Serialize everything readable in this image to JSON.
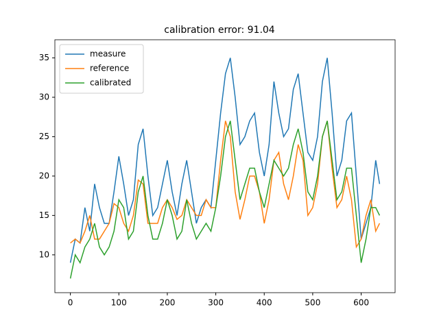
{
  "chart_data": {
    "type": "line",
    "title": "calibration error: 91.04",
    "x": [
      0,
      10,
      20,
      30,
      40,
      50,
      60,
      70,
      80,
      90,
      100,
      110,
      120,
      130,
      140,
      150,
      160,
      170,
      180,
      190,
      200,
      210,
      220,
      230,
      240,
      250,
      260,
      270,
      280,
      290,
      300,
      310,
      320,
      330,
      340,
      350,
      360,
      370,
      380,
      390,
      400,
      410,
      420,
      430,
      440,
      450,
      460,
      470,
      480,
      490,
      500,
      510,
      520,
      530,
      540,
      550,
      560,
      570,
      580,
      590,
      600,
      610,
      620,
      630,
      638
    ],
    "series": [
      {
        "name": "measure",
        "color": "#1f77b4",
        "values": [
          9,
          12,
          11.5,
          16,
          13,
          19,
          16,
          14,
          14,
          18,
          22.5,
          19,
          15,
          17,
          24,
          26,
          20,
          15,
          16,
          19,
          22,
          18,
          15,
          19,
          22,
          18,
          14,
          16,
          17,
          16,
          22,
          28,
          33,
          35,
          30,
          24,
          25,
          27,
          28,
          23,
          20,
          24,
          32,
          28,
          25,
          26,
          31,
          33,
          28,
          23,
          22,
          25,
          32,
          35,
          28,
          20,
          22,
          27,
          28,
          20,
          12,
          14,
          16,
          22,
          19
        ]
      },
      {
        "name": "reference",
        "color": "#ff7f0e",
        "values": [
          11.5,
          12,
          11.5,
          13,
          15,
          12,
          12,
          13,
          14,
          16.5,
          16,
          14,
          13,
          15,
          19.5,
          19,
          14,
          14,
          14,
          16,
          17,
          16,
          14.5,
          15,
          17,
          16,
          15,
          15,
          17,
          16,
          16,
          22,
          27,
          25,
          18,
          14.5,
          17,
          20,
          20,
          18,
          14,
          17,
          22,
          23,
          19,
          17,
          20,
          24,
          22,
          15,
          16,
          19,
          25,
          27,
          21,
          16,
          17,
          20,
          17,
          11,
          12,
          15,
          17,
          13,
          14
        ]
      },
      {
        "name": "calibrated",
        "color": "#2ca02c",
        "values": [
          7,
          10,
          9,
          11,
          12,
          14,
          11,
          10,
          11,
          13,
          17,
          16,
          12,
          13,
          18,
          20,
          15,
          12,
          12,
          14,
          17,
          15,
          12,
          13,
          17,
          14,
          12,
          13,
          14,
          13,
          16,
          20,
          25,
          27,
          22,
          17,
          19,
          21,
          21,
          18,
          16,
          19,
          22,
          21,
          20,
          21,
          24,
          26,
          23,
          18,
          17,
          20,
          25,
          27,
          22,
          17,
          18,
          21,
          21,
          15,
          9,
          12,
          16,
          16,
          15
        ]
      }
    ],
    "xlim": [
      -32,
      670
    ],
    "ylim": [
      5.2,
      37.3
    ],
    "xticks": [
      0,
      100,
      200,
      300,
      400,
      500,
      600
    ],
    "yticks": [
      10,
      15,
      20,
      25,
      30,
      35
    ],
    "legend": "upper left"
  }
}
